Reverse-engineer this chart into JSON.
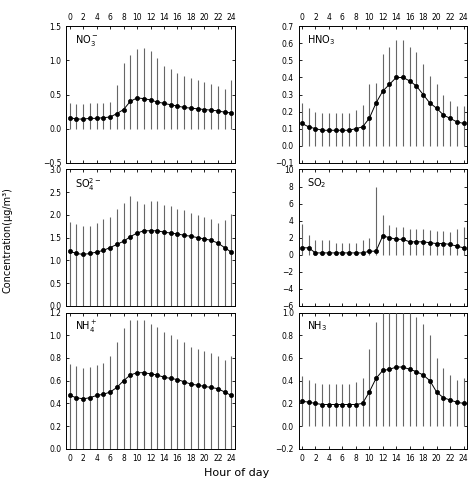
{
  "hours": [
    0,
    1,
    2,
    3,
    4,
    5,
    6,
    7,
    8,
    9,
    10,
    11,
    12,
    13,
    14,
    15,
    16,
    17,
    18,
    19,
    20,
    21,
    22,
    23,
    24
  ],
  "panels": [
    {
      "label": "NO$_3^-$",
      "mean": [
        0.16,
        0.14,
        0.14,
        0.15,
        0.15,
        0.16,
        0.17,
        0.22,
        0.28,
        0.4,
        0.45,
        0.44,
        0.42,
        0.39,
        0.37,
        0.35,
        0.33,
        0.31,
        0.3,
        0.29,
        0.28,
        0.27,
        0.26,
        0.24,
        0.23
      ],
      "err_up": [
        0.22,
        0.22,
        0.22,
        0.22,
        0.22,
        0.22,
        0.22,
        0.42,
        0.68,
        0.68,
        0.72,
        0.75,
        0.72,
        0.65,
        0.55,
        0.52,
        0.48,
        0.46,
        0.44,
        0.42,
        0.4,
        0.38,
        0.36,
        0.34,
        0.48
      ],
      "err_dn": [
        0.16,
        0.14,
        0.14,
        0.15,
        0.15,
        0.16,
        0.17,
        0.22,
        0.28,
        0.4,
        0.45,
        0.44,
        0.42,
        0.39,
        0.37,
        0.35,
        0.33,
        0.31,
        0.3,
        0.29,
        0.28,
        0.27,
        0.26,
        0.24,
        0.23
      ],
      "ylim": [
        -0.5,
        1.5
      ],
      "yticks": [
        -0.5,
        0.0,
        0.5,
        1.0,
        1.5
      ],
      "row": 0,
      "col": 0
    },
    {
      "label": "HNO$_3$",
      "mean": [
        0.13,
        0.11,
        0.1,
        0.09,
        0.09,
        0.09,
        0.09,
        0.09,
        0.1,
        0.11,
        0.16,
        0.25,
        0.32,
        0.36,
        0.4,
        0.4,
        0.38,
        0.35,
        0.3,
        0.25,
        0.22,
        0.18,
        0.16,
        0.14,
        0.13
      ],
      "err_up": [
        0.12,
        0.11,
        0.1,
        0.1,
        0.1,
        0.1,
        0.1,
        0.1,
        0.11,
        0.13,
        0.2,
        0.12,
        0.22,
        0.22,
        0.22,
        0.22,
        0.2,
        0.2,
        0.18,
        0.16,
        0.14,
        0.12,
        0.1,
        0.09,
        0.1
      ],
      "err_dn": [
        0.13,
        0.11,
        0.1,
        0.09,
        0.09,
        0.09,
        0.09,
        0.09,
        0.1,
        0.11,
        0.16,
        0.25,
        0.32,
        0.36,
        0.4,
        0.4,
        0.38,
        0.35,
        0.3,
        0.25,
        0.22,
        0.18,
        0.16,
        0.14,
        0.13
      ],
      "ylim": [
        -0.1,
        0.7
      ],
      "yticks": [
        -0.1,
        0.0,
        0.1,
        0.2,
        0.3,
        0.4,
        0.5,
        0.6,
        0.7
      ],
      "row": 0,
      "col": 1
    },
    {
      "label": "SO$_4^{2-}$",
      "mean": [
        1.2,
        1.15,
        1.13,
        1.15,
        1.18,
        1.22,
        1.28,
        1.35,
        1.42,
        1.52,
        1.6,
        1.65,
        1.65,
        1.65,
        1.62,
        1.6,
        1.58,
        1.55,
        1.53,
        1.5,
        1.47,
        1.44,
        1.38,
        1.28,
        1.18
      ],
      "err_up": [
        0.65,
        0.65,
        0.62,
        0.6,
        0.65,
        0.7,
        0.68,
        0.78,
        0.85,
        0.9,
        0.7,
        0.6,
        0.65,
        0.65,
        0.6,
        0.6,
        0.55,
        0.55,
        0.52,
        0.5,
        0.48,
        0.46,
        0.44,
        0.6,
        0.85
      ],
      "err_dn": [
        1.2,
        1.15,
        1.13,
        1.15,
        1.18,
        1.22,
        1.28,
        1.35,
        1.42,
        1.52,
        1.6,
        1.65,
        1.65,
        1.65,
        1.62,
        1.6,
        1.58,
        1.55,
        1.53,
        1.5,
        1.47,
        1.44,
        1.38,
        1.28,
        1.18
      ],
      "ylim": [
        0.0,
        3.0
      ],
      "yticks": [
        0.0,
        0.5,
        1.0,
        1.5,
        2.0,
        2.5,
        3.0
      ],
      "row": 1,
      "col": 0
    },
    {
      "label": "SO$_2$",
      "mean": [
        0.8,
        0.8,
        0.2,
        0.2,
        0.2,
        0.2,
        0.2,
        0.2,
        0.2,
        0.2,
        0.4,
        0.4,
        2.2,
        2.0,
        1.8,
        1.8,
        1.5,
        1.5,
        1.5,
        1.4,
        1.3,
        1.3,
        1.2,
        1.0,
        0.8
      ],
      "err_up": [
        2.8,
        1.5,
        1.5,
        1.5,
        1.5,
        1.2,
        1.2,
        1.2,
        1.2,
        1.5,
        1.5,
        7.5,
        2.5,
        1.5,
        1.5,
        1.5,
        1.5,
        1.5,
        1.5,
        1.5,
        1.5,
        1.5,
        1.5,
        2.0,
        2.5
      ],
      "err_dn": [
        0.8,
        0.8,
        0.2,
        0.2,
        0.2,
        0.2,
        0.2,
        0.2,
        0.2,
        0.2,
        0.4,
        0.4,
        2.2,
        2.0,
        1.8,
        1.8,
        1.5,
        1.5,
        1.5,
        1.4,
        1.3,
        1.3,
        1.2,
        1.0,
        0.8
      ],
      "ylim": [
        -6,
        10
      ],
      "yticks": [
        -6,
        -4,
        -2,
        0,
        2,
        4,
        6,
        8,
        10
      ],
      "row": 1,
      "col": 1
    },
    {
      "label": "NH$_4^+$",
      "mean": [
        0.47,
        0.45,
        0.44,
        0.45,
        0.47,
        0.48,
        0.5,
        0.54,
        0.6,
        0.65,
        0.67,
        0.67,
        0.66,
        0.65,
        0.63,
        0.62,
        0.61,
        0.59,
        0.57,
        0.56,
        0.55,
        0.54,
        0.53,
        0.5,
        0.47
      ],
      "err_up": [
        0.28,
        0.28,
        0.27,
        0.27,
        0.27,
        0.28,
        0.32,
        0.4,
        0.46,
        0.48,
        0.46,
        0.46,
        0.44,
        0.42,
        0.4,
        0.38,
        0.36,
        0.35,
        0.33,
        0.32,
        0.31,
        0.3,
        0.29,
        0.28,
        0.35
      ],
      "err_dn": [
        0.47,
        0.45,
        0.44,
        0.45,
        0.47,
        0.48,
        0.5,
        0.54,
        0.6,
        0.65,
        0.67,
        0.67,
        0.66,
        0.65,
        0.63,
        0.62,
        0.61,
        0.59,
        0.57,
        0.56,
        0.55,
        0.54,
        0.53,
        0.5,
        0.47
      ],
      "ylim": [
        0.0,
        1.2
      ],
      "yticks": [
        0.0,
        0.2,
        0.4,
        0.6,
        0.8,
        1.0,
        1.2
      ],
      "row": 2,
      "col": 0
    },
    {
      "label": "NH$_3$",
      "mean": [
        0.22,
        0.21,
        0.2,
        0.19,
        0.19,
        0.19,
        0.19,
        0.19,
        0.19,
        0.2,
        0.3,
        0.42,
        0.49,
        0.5,
        0.52,
        0.52,
        0.5,
        0.48,
        0.45,
        0.4,
        0.3,
        0.25,
        0.23,
        0.21,
        0.2
      ],
      "err_up": [
        0.22,
        0.2,
        0.18,
        0.18,
        0.18,
        0.18,
        0.18,
        0.18,
        0.2,
        0.22,
        0.38,
        0.5,
        0.58,
        0.55,
        0.55,
        0.52,
        0.5,
        0.48,
        0.45,
        0.4,
        0.3,
        0.26,
        0.22,
        0.2,
        0.22
      ],
      "err_dn": [
        0.22,
        0.21,
        0.2,
        0.19,
        0.19,
        0.19,
        0.19,
        0.19,
        0.19,
        0.2,
        0.3,
        0.42,
        0.49,
        0.5,
        0.52,
        0.52,
        0.5,
        0.48,
        0.45,
        0.4,
        0.3,
        0.25,
        0.23,
        0.21,
        0.2
      ],
      "ylim": [
        -0.2,
        1.0
      ],
      "yticks": [
        -0.2,
        0.0,
        0.2,
        0.4,
        0.6,
        0.8,
        1.0
      ],
      "row": 2,
      "col": 1
    }
  ],
  "xlabel": "Hour of day",
  "ylabel": "Concentration(μg/m³)",
  "marker_color": "black",
  "marker_size": 3.0,
  "line_color": "black",
  "error_color": "#666666",
  "bg_color": "white"
}
